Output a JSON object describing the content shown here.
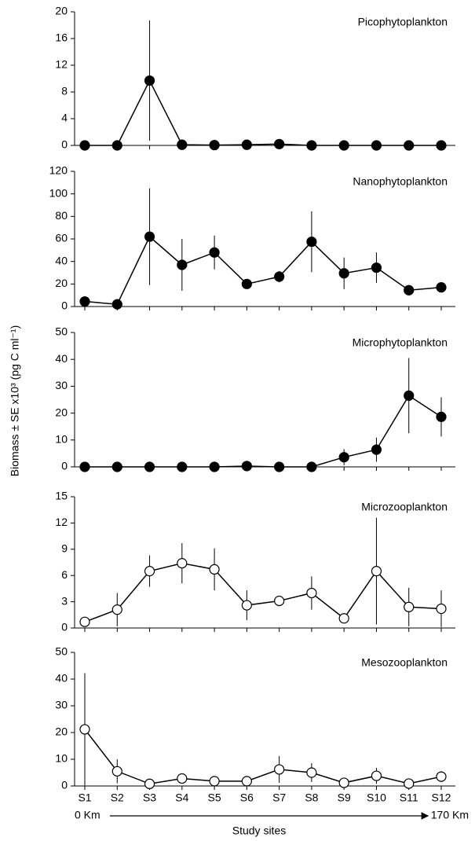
{
  "ylabel": "Biomass ± SE x10³ (pg C ml⁻¹)",
  "xlabel": "Study sites",
  "x_start": "0 Km",
  "x_end": "170 Km",
  "categories": [
    "S1",
    "S2",
    "S3",
    "S4",
    "S5",
    "S6",
    "S7",
    "S8",
    "S9",
    "S10",
    "S11",
    "S12"
  ],
  "chart_data": [
    {
      "type": "line",
      "title": "Picophytoplankton",
      "marker_fill": "#000000",
      "values": [
        0,
        0,
        9.7,
        0.1,
        0.05,
        0.1,
        0.2,
        0,
        0,
        0,
        0,
        0
      ],
      "errors": [
        0,
        0,
        9,
        0,
        0,
        0,
        0,
        0,
        0,
        0,
        0,
        0
      ],
      "ylim": [
        0,
        20
      ],
      "yticks": [
        0,
        4,
        8,
        12,
        16,
        20
      ]
    },
    {
      "type": "line",
      "title": "Nanophytoplankton",
      "marker_fill": "#000000",
      "values": [
        4.5,
        2,
        62,
        37,
        48,
        20,
        26.5,
        57.5,
        29.5,
        34.5,
        14.5,
        17
      ],
      "errors": [
        0,
        0,
        43,
        23,
        15,
        0,
        5,
        27,
        14,
        13.5,
        0,
        0
      ],
      "ylim": [
        0,
        120
      ],
      "yticks": [
        0,
        20,
        40,
        60,
        80,
        100,
        120
      ]
    },
    {
      "type": "line",
      "title": "Microphytoplankton",
      "marker_fill": "#000000",
      "values": [
        0,
        0,
        0,
        0,
        0,
        0.3,
        0,
        0,
        3.6,
        6.4,
        26.5,
        18.6
      ],
      "errors": [
        0,
        0,
        0,
        0,
        0,
        0,
        0,
        0,
        3,
        4.5,
        14,
        7.3
      ],
      "ylim": [
        0,
        50
      ],
      "yticks": [
        0,
        10,
        20,
        30,
        40,
        50
      ]
    },
    {
      "type": "line",
      "title": "Microzooplankton",
      "marker_fill": "#ffffff",
      "values": [
        0.7,
        2.1,
        6.5,
        7.4,
        6.7,
        2.6,
        3.1,
        4.0,
        1.1,
        6.5,
        2.4,
        2.2
      ],
      "errors": [
        0,
        1.9,
        1.8,
        2.3,
        2.4,
        1.7,
        0.6,
        1.9,
        0,
        6.1,
        2.2,
        2.1
      ],
      "ylim": [
        0,
        15
      ],
      "yticks": [
        0,
        3,
        6,
        9,
        12,
        15
      ]
    },
    {
      "type": "line",
      "title": "Mesozooplankton",
      "marker_fill": "#ffffff",
      "values": [
        21.2,
        5.5,
        0.8,
        2.8,
        1.8,
        1.8,
        6.2,
        5,
        1.2,
        3.8,
        0.9,
        3.5
      ],
      "errors": [
        21,
        4.5,
        0,
        0,
        0,
        0,
        5,
        3.5,
        0,
        3,
        0,
        2
      ],
      "ylim": [
        0,
        50
      ],
      "yticks": [
        0,
        10,
        20,
        30,
        40,
        50
      ]
    }
  ]
}
